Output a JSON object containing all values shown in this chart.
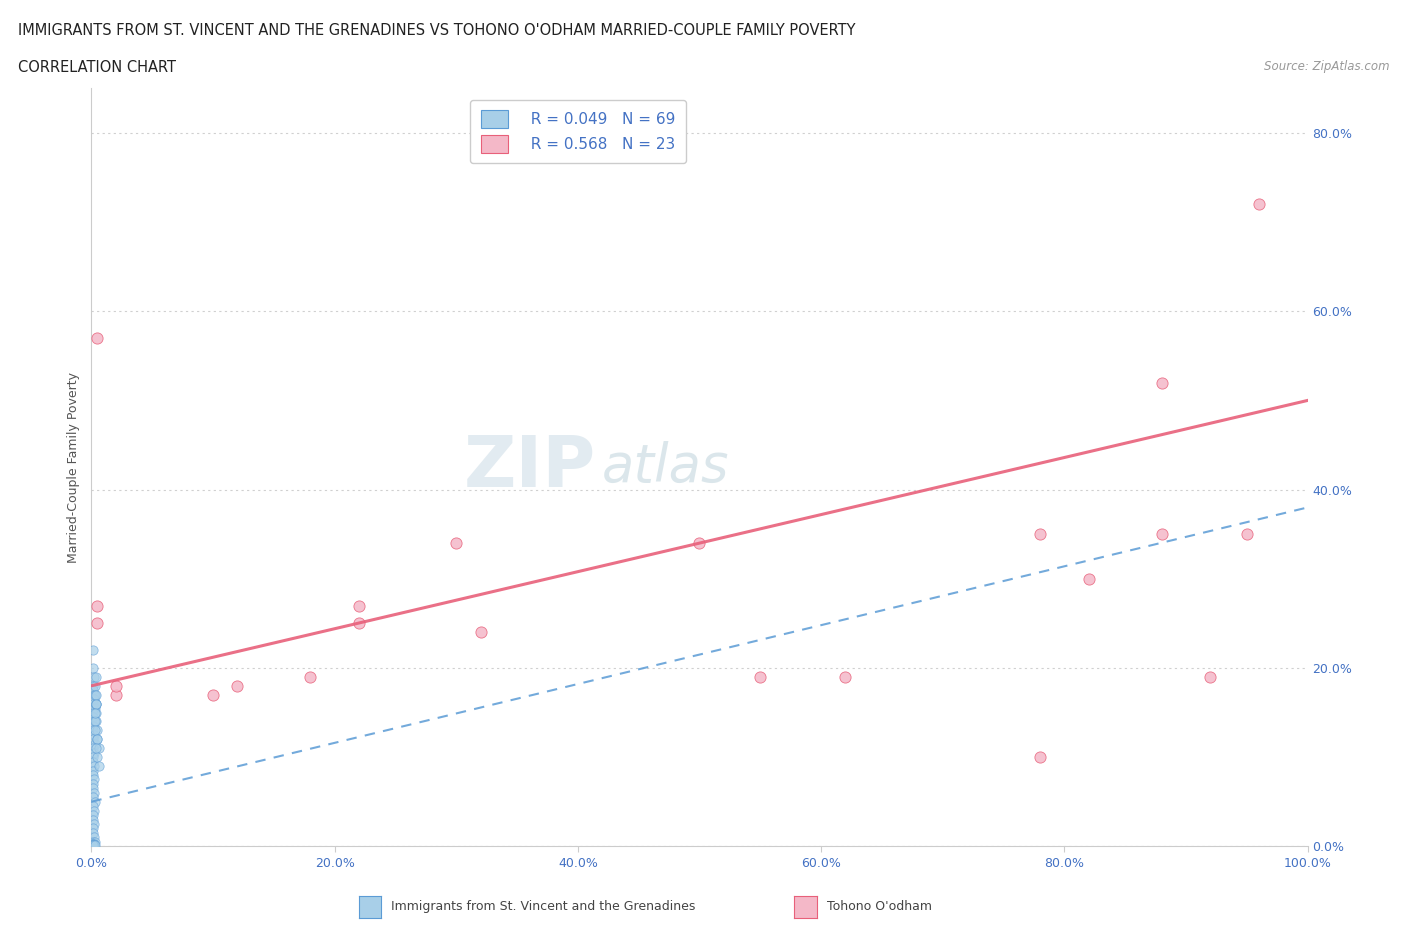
{
  "title_line1": "IMMIGRANTS FROM ST. VINCENT AND THE GRENADINES VS TOHONO O'ODHAM MARRIED-COUPLE FAMILY POVERTY",
  "title_line2": "CORRELATION CHART",
  "source_text": "Source: ZipAtlas.com",
  "ylabel": "Married-Couple Family Poverty",
  "xlim": [
    0.0,
    1.0
  ],
  "ylim": [
    0.0,
    0.85
  ],
  "watermark_part1": "ZIP",
  "watermark_part2": "atlas",
  "legend_R1": "R = 0.049",
  "legend_N1": "N = 69",
  "legend_R2": "R = 0.568",
  "legend_N2": "N = 23",
  "color_blue": "#a8cfe8",
  "color_pink": "#f4b8c8",
  "color_blue_line": "#5b9bd5",
  "color_pink_line": "#e8607a",
  "color_blue_edge": "#5b9bd5",
  "color_pink_edge": "#e8607a",
  "grid_color": "#d0d0d0",
  "blue_scatter_x": [
    0.001,
    0.001,
    0.002,
    0.001,
    0.001,
    0.002,
    0.002,
    0.001,
    0.003,
    0.001,
    0.001,
    0.002,
    0.001,
    0.001,
    0.002,
    0.001,
    0.003,
    0.001,
    0.002,
    0.001,
    0.001,
    0.002,
    0.001,
    0.001,
    0.002,
    0.001,
    0.001,
    0.002,
    0.001,
    0.003,
    0.001,
    0.002,
    0.001,
    0.001,
    0.002,
    0.001,
    0.001,
    0.002,
    0.001,
    0.003,
    0.001,
    0.002,
    0.001,
    0.001,
    0.002,
    0.001,
    0.001,
    0.002,
    0.001,
    0.003,
    0.004,
    0.004,
    0.005,
    0.003,
    0.004,
    0.003,
    0.005,
    0.004,
    0.006,
    0.004,
    0.003,
    0.005,
    0.004,
    0.003,
    0.006,
    0.004,
    0.005,
    0.003,
    0.004
  ],
  "blue_scatter_y": [
    0.22,
    0.2,
    0.19,
    0.18,
    0.175,
    0.17,
    0.165,
    0.16,
    0.155,
    0.15,
    0.145,
    0.14,
    0.135,
    0.13,
    0.125,
    0.12,
    0.115,
    0.11,
    0.105,
    0.1,
    0.095,
    0.09,
    0.085,
    0.08,
    0.075,
    0.07,
    0.065,
    0.06,
    0.055,
    0.05,
    0.045,
    0.04,
    0.035,
    0.03,
    0.025,
    0.02,
    0.015,
    0.01,
    0.005,
    0.005,
    0.003,
    0.003,
    0.003,
    0.002,
    0.002,
    0.002,
    0.001,
    0.001,
    0.001,
    0.001,
    0.16,
    0.14,
    0.12,
    0.18,
    0.15,
    0.17,
    0.13,
    0.16,
    0.11,
    0.19,
    0.14,
    0.1,
    0.17,
    0.13,
    0.09,
    0.16,
    0.12,
    0.15,
    0.11
  ],
  "pink_scatter_x": [
    0.005,
    0.005,
    0.005,
    0.02,
    0.02,
    0.1,
    0.12,
    0.18,
    0.22,
    0.22,
    0.62,
    0.78,
    0.78,
    0.82,
    0.88,
    0.88,
    0.92,
    0.95,
    0.96,
    0.3,
    0.32,
    0.5,
    0.55
  ],
  "pink_scatter_y": [
    0.57,
    0.27,
    0.25,
    0.17,
    0.18,
    0.17,
    0.18,
    0.19,
    0.25,
    0.27,
    0.19,
    0.1,
    0.35,
    0.3,
    0.35,
    0.52,
    0.19,
    0.35,
    0.72,
    0.34,
    0.24,
    0.34,
    0.19
  ],
  "blue_trendline_x": [
    0.0,
    1.0
  ],
  "blue_trendline_y": [
    0.05,
    0.38
  ],
  "pink_trendline_x": [
    0.0,
    1.0
  ],
  "pink_trendline_y": [
    0.18,
    0.5
  ]
}
